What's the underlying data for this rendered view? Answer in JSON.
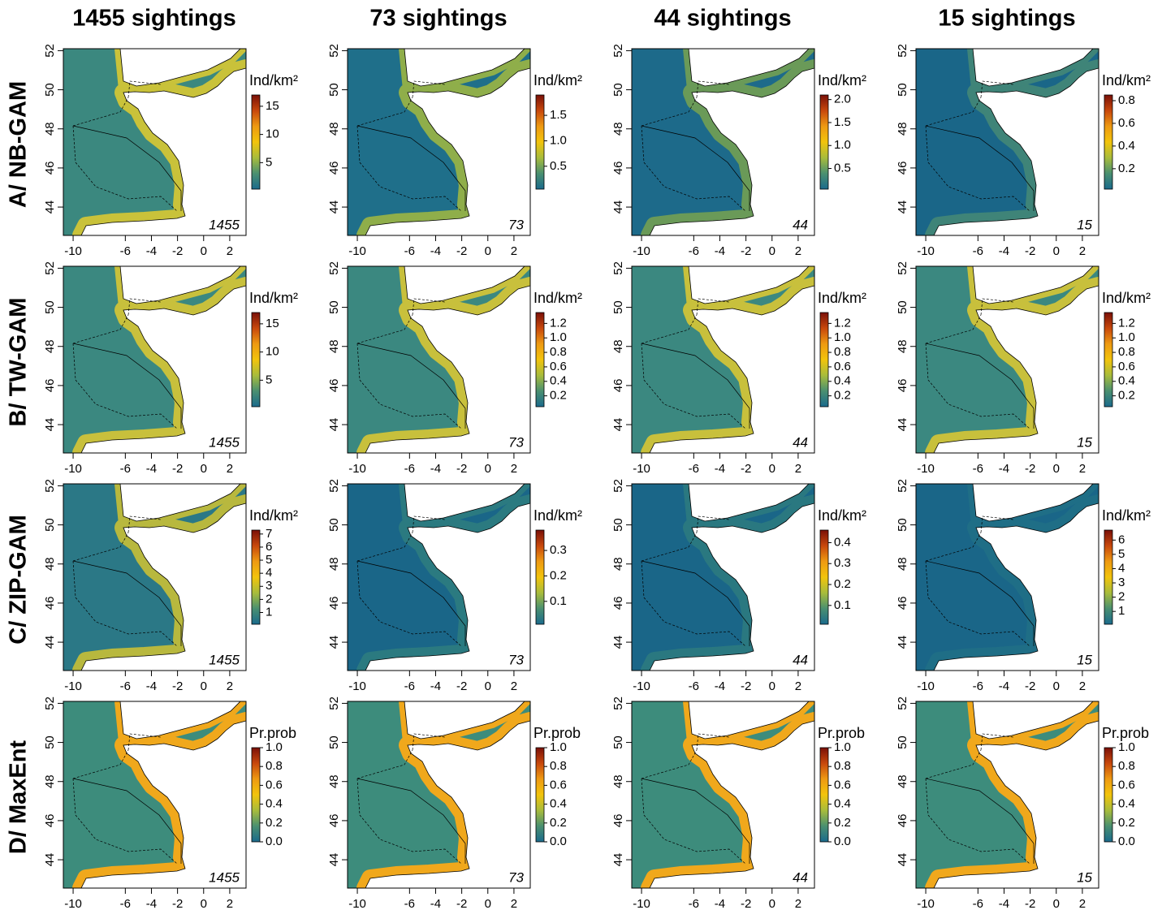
{
  "columns": [
    "1455 sightings",
    "73 sightings",
    "44 sightings",
    "15 sightings"
  ],
  "sample_labels": [
    "1455",
    "73",
    "44",
    "15"
  ],
  "xlim": [
    -10.75,
    3.25
  ],
  "ylim": [
    42.55,
    52.1
  ],
  "xticks": [
    -10,
    -6,
    -4,
    -2,
    0,
    2
  ],
  "yticks": [
    44,
    46,
    48,
    50,
    52
  ],
  "colormap": [
    "#1a6a8c",
    "#4a9070",
    "#a8bc3c",
    "#f2c40c",
    "#ee9a12",
    "#c8480c",
    "#7a1008"
  ],
  "rows": [
    {
      "label": "A/ NB-GAM",
      "legend_title": "Ind/km²",
      "panels": [
        {
          "sea": "#3b887f",
          "coast": "#c9c23a",
          "lim": [
            0.3,
            17
          ],
          "ticks": [
            5,
            10,
            15
          ]
        },
        {
          "sea": "#1f6f8a",
          "coast": "#8fae4a",
          "lim": [
            0.05,
            1.9
          ],
          "ticks": [
            0.5,
            {
              "value": 1,
              "label": "1.0"
            },
            1.5
          ]
        },
        {
          "sea": "#1d6a8a",
          "coast": "#6a9a58",
          "lim": [
            0.05,
            2.1
          ],
          "ticks": [
            0.5,
            {
              "value": 1,
              "label": "1.0"
            },
            1.5,
            {
              "value": 2,
              "label": "2.0"
            }
          ]
        },
        {
          "sea": "#1a6688",
          "coast": "#3f8478",
          "lim": [
            0.02,
            0.85
          ],
          "ticks": [
            0.2,
            0.4,
            0.6,
            0.8
          ]
        }
      ]
    },
    {
      "label": "B/ TW-GAM",
      "legend_title": "Ind/km²",
      "panels": [
        {
          "sea": "#3b8880",
          "coast": "#c8c03c",
          "lim": [
            0.3,
            17
          ],
          "ticks": [
            5,
            10,
            15
          ]
        },
        {
          "sea": "#3b8880",
          "coast": "#c8c03c",
          "lim": [
            0.05,
            1.35
          ],
          "ticks": [
            0.2,
            0.4,
            0.6,
            0.8,
            {
              "value": 1,
              "label": "1.0"
            },
            1.2
          ]
        },
        {
          "sea": "#3b8880",
          "coast": "#c8c03c",
          "lim": [
            0.05,
            1.35
          ],
          "ticks": [
            0.2,
            0.4,
            0.6,
            0.8,
            {
              "value": 1,
              "label": "1.0"
            },
            1.2
          ]
        },
        {
          "sea": "#3b8880",
          "coast": "#c8c03c",
          "lim": [
            0.05,
            1.35
          ],
          "ticks": [
            0.2,
            0.4,
            0.6,
            0.8,
            {
              "value": 1,
              "label": "1.0"
            },
            1.2
          ]
        }
      ]
    },
    {
      "label": "C/ ZIP-GAM",
      "legend_title": "Ind/km²",
      "panels": [
        {
          "sea": "#2b7886",
          "coast": "#b8b83e",
          "lim": [
            0.1,
            7.3
          ],
          "ticks": [
            1,
            2,
            3,
            4,
            5,
            6,
            7
          ]
        },
        {
          "sea": "#1a6688",
          "coast": "#2b7a80",
          "lim": [
            0.01,
            0.38
          ],
          "ticks": [
            0.1,
            0.2,
            0.3
          ]
        },
        {
          "sea": "#1a6688",
          "coast": "#2a7880",
          "lim": [
            0.01,
            0.46
          ],
          "ticks": [
            0.1,
            0.2,
            0.3,
            0.4
          ]
        },
        {
          "sea": "#1a6688",
          "coast": "#1f6e86",
          "lim": [
            0.1,
            6.7
          ],
          "ticks": [
            1,
            2,
            3,
            4,
            5,
            6
          ]
        }
      ]
    },
    {
      "label": "D/ MaxEnt",
      "legend_title": "Pr.prob",
      "panels": [
        {
          "sea": "#3d8c7c",
          "coast": "#f0a81c",
          "lim": [
            0,
            1
          ],
          "ticks": [
            {
              "value": 0,
              "label": "0.0"
            },
            0.2,
            0.4,
            0.6,
            0.8,
            {
              "value": 1,
              "label": "1.0"
            }
          ]
        },
        {
          "sea": "#3d8c7c",
          "coast": "#f0a81c",
          "lim": [
            0,
            1
          ],
          "ticks": [
            {
              "value": 0,
              "label": "0.0"
            },
            0.2,
            0.4,
            0.6,
            0.8,
            {
              "value": 1,
              "label": "1.0"
            }
          ]
        },
        {
          "sea": "#3d8c7c",
          "coast": "#f0a81c",
          "lim": [
            0,
            1
          ],
          "ticks": [
            {
              "value": 0,
              "label": "0.0"
            },
            0.2,
            0.4,
            0.6,
            0.8,
            {
              "value": 1,
              "label": "1.0"
            }
          ]
        },
        {
          "sea": "#3d8c7c",
          "coast": "#f0a81c",
          "lim": [
            0,
            1
          ],
          "ticks": [
            {
              "value": 0,
              "label": "0.0"
            },
            0.2,
            0.4,
            0.6,
            0.8,
            {
              "value": 1,
              "label": "1.0"
            }
          ]
        }
      ]
    }
  ]
}
